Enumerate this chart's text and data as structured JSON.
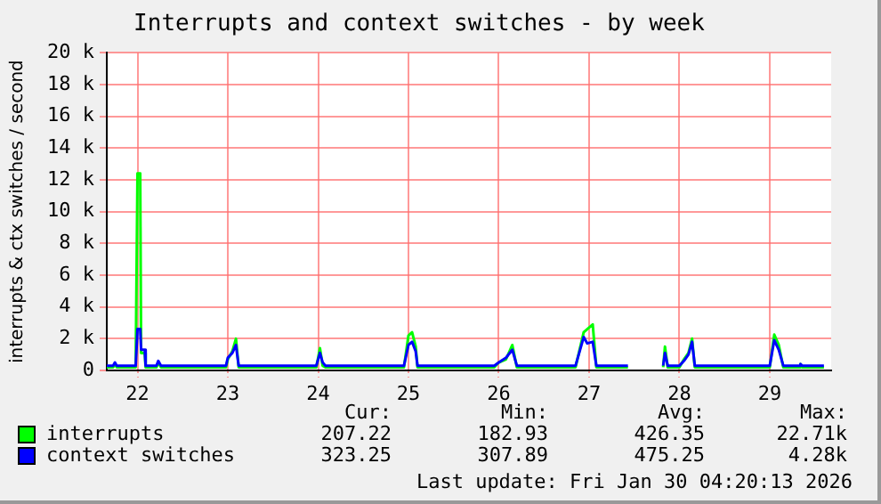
{
  "chart_data": {
    "type": "line",
    "title": "Interrupts and context switches - by week",
    "ylabel": "interrupts & ctx switches / second",
    "x": [
      21.66,
      21.73,
      21.75,
      21.77,
      21.98,
      22.0,
      22.03,
      22.04,
      22.08,
      22.09,
      22.21,
      22.23,
      22.26,
      22.98,
      23.0,
      23.05,
      23.09,
      23.12,
      23.98,
      24.02,
      24.05,
      24.08,
      24.95,
      25.0,
      25.04,
      25.08,
      25.1,
      25.95,
      26.0,
      26.08,
      26.15,
      26.2,
      26.85,
      26.94,
      26.98,
      27.04,
      27.08,
      27.43,
      27.45,
      27.8,
      27.82,
      27.84,
      27.87,
      28.0,
      28.05,
      28.1,
      28.14,
      28.17,
      29.0,
      29.05,
      29.1,
      29.15,
      29.33,
      29.34,
      29.36,
      29.6
    ],
    "series": [
      {
        "name": "interrupts",
        "color": "#00ff00",
        "values": [
          200,
          200,
          400,
          200,
          200,
          12400,
          12400,
          1100,
          1100,
          200,
          200,
          500,
          200,
          200,
          700,
          1200,
          2000,
          200,
          200,
          1400,
          300,
          200,
          200,
          2200,
          2400,
          1500,
          200,
          200,
          500,
          700,
          1600,
          200,
          200,
          2400,
          2600,
          2900,
          200,
          200,
          null,
          null,
          200,
          1500,
          200,
          200,
          700,
          1100,
          2000,
          200,
          200,
          2250,
          1600,
          200,
          200,
          400,
          200,
          200
        ]
      },
      {
        "name": "context switches",
        "color": "#0000ff",
        "values": [
          300,
          300,
          500,
          300,
          300,
          2600,
          2600,
          1300,
          1300,
          300,
          300,
          600,
          300,
          300,
          800,
          1100,
          1600,
          300,
          300,
          1100,
          500,
          300,
          300,
          1600,
          1800,
          1200,
          300,
          300,
          500,
          800,
          1300,
          300,
          300,
          2100,
          1700,
          1800,
          300,
          300,
          null,
          null,
          300,
          1100,
          300,
          300,
          600,
          1000,
          1800,
          300,
          300,
          1900,
          1300,
          300,
          300,
          400,
          300,
          300
        ]
      }
    ],
    "xlim": [
      21.66,
      29.68
    ],
    "xticks": [
      22,
      23,
      24,
      25,
      26,
      27,
      28,
      29
    ],
    "ylim": [
      0,
      20000
    ],
    "yticks": [
      0,
      {
        "value": 2000,
        "label": "2 k"
      },
      {
        "value": 4000,
        "label": "4 k"
      },
      {
        "value": 6000,
        "label": "6 k"
      },
      {
        "value": 8000,
        "label": "8 k"
      },
      {
        "value": 10000,
        "label": "10 k"
      },
      {
        "value": 12000,
        "label": "12 k"
      },
      {
        "value": 14000,
        "label": "14 k"
      },
      {
        "value": 16000,
        "label": "16 k"
      },
      {
        "value": 18000,
        "label": "18 k"
      },
      {
        "value": 20000,
        "label": "20 k"
      }
    ],
    "grid": true,
    "legend": "bottom left",
    "marker": "none",
    "line_style": "solid",
    "annotations": [
      "Cur:",
      "Min:",
      "Avg:",
      "Max:",
      "207.22",
      "182.93",
      "426.35",
      "22.71k",
      "323.25",
      "307.89",
      "475.25",
      "4.28k",
      "Last update: Fri Jan 30 04:20:13 2026"
    ]
  }
}
